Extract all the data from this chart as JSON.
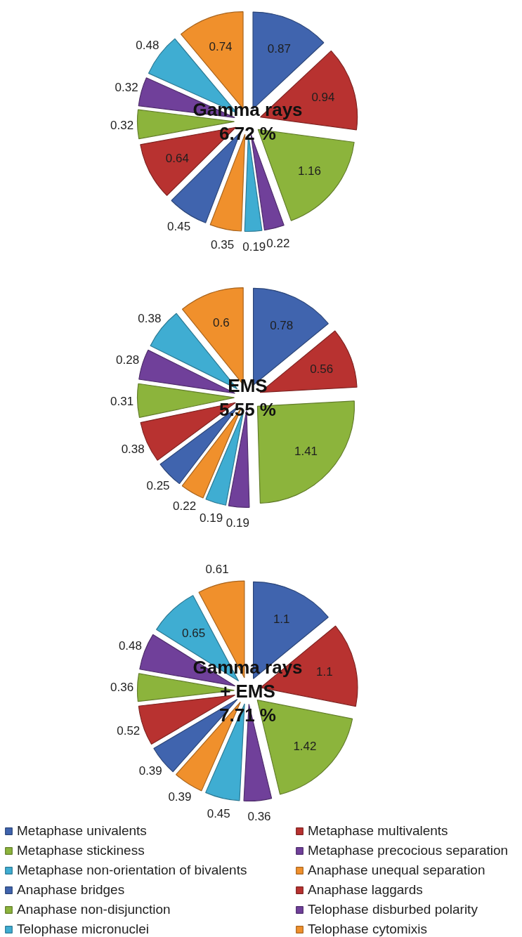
{
  "chart_data": [
    {
      "type": "pie",
      "title": "Gamma rays",
      "subtitle": "6.72 %",
      "categories": [
        null,
        null,
        null,
        null,
        null,
        null,
        null,
        null,
        null,
        null,
        null,
        null
      ],
      "values": [
        0.87,
        0.94,
        1.16,
        0.22,
        0.19,
        0.35,
        0.45,
        0.64,
        0.32,
        0.32,
        0.48,
        0.74
      ],
      "colors": [
        "#4064ae",
        "#b83230",
        "#8cb43c",
        "#70409a",
        "#3fadd2",
        "#f0902c",
        "#4064ae",
        "#b83230",
        "#8cb43c",
        "#70409a",
        "#3fadd2",
        "#f0902c"
      ],
      "data_labels": true
    },
    {
      "type": "pie",
      "title": "EMS",
      "subtitle": "5.55 %",
      "categories": [
        null,
        null,
        null,
        null,
        null,
        null,
        null,
        null,
        null,
        null,
        null,
        null
      ],
      "values": [
        0.78,
        0.56,
        1.41,
        0.19,
        0.19,
        0.22,
        0.25,
        0.38,
        0.31,
        0.28,
        0.38,
        0.6
      ],
      "colors": [
        "#4064ae",
        "#b83230",
        "#8cb43c",
        "#70409a",
        "#3fadd2",
        "#f0902c",
        "#4064ae",
        "#b83230",
        "#8cb43c",
        "#70409a",
        "#3fadd2",
        "#f0902c"
      ],
      "data_labels": true
    },
    {
      "type": "pie",
      "title": "Gamma rays + EMS",
      "subtitle": "7.71 %",
      "categories": [
        "Metaphase univalents",
        "Metaphase multivalents",
        "Metaphase stickiness",
        "Metaphase precocious separation",
        "Metaphase non-orientation of bivalents",
        "Anaphase unequal separation",
        "Anaphase bridges",
        "Anaphase laggards",
        "Anaphase non-disjunction",
        "Telophase disburbed polarity",
        "Telophase micronuclei",
        "Telophase cytomixis"
      ],
      "values": [
        1.1,
        1.1,
        1.42,
        0.36,
        0.45,
        0.39,
        0.39,
        0.52,
        0.36,
        0.48,
        0.65,
        0.61
      ],
      "colors": [
        "#4064ae",
        "#b83230",
        "#8cb43c",
        "#70409a",
        "#3fadd2",
        "#f0902c",
        "#4064ae",
        "#b83230",
        "#8cb43c",
        "#70409a",
        "#3fadd2",
        "#f0902c"
      ],
      "data_labels": true,
      "legend": "bottom"
    }
  ]
}
